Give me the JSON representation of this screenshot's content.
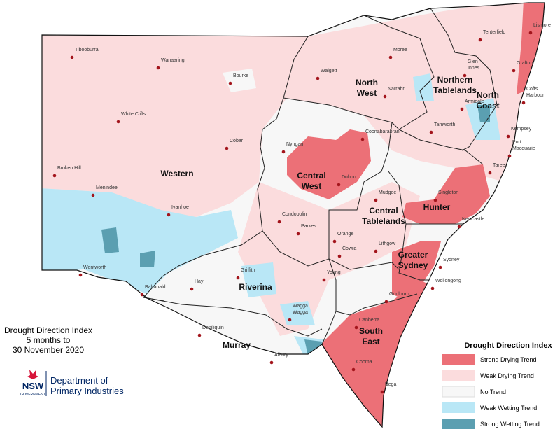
{
  "title": [
    "Drought Direction Index",
    "5 months to",
    "30 November 2020"
  ],
  "logo": {
    "mark": "NSW",
    "sub": "GOVERNMENT",
    "name": [
      "Department of",
      "Primary Industries"
    ]
  },
  "regions": [
    [
      "Western"
    ],
    [
      "North",
      "West"
    ],
    [
      "Northern",
      "Tablelands"
    ],
    [
      "North",
      "Coast"
    ],
    [
      "Central",
      "West"
    ],
    [
      "Central",
      "Tablelands"
    ],
    [
      "Hunter"
    ],
    [
      "Greater",
      "Sydney"
    ],
    [
      "Riverina"
    ],
    [
      "Murray"
    ],
    [
      "South",
      "East"
    ]
  ],
  "towns": [
    [
      "Tibooburra"
    ],
    [
      "Wanaaring"
    ],
    [
      "Bourke"
    ],
    [
      "Moree"
    ],
    [
      "Walgett"
    ],
    [
      "Tenterfield"
    ],
    [
      "Lismore"
    ],
    [
      "Glen",
      "Innes"
    ],
    [
      "Narrabri"
    ],
    [
      "Grafton"
    ],
    [
      "Coffs",
      "Harbour"
    ],
    [
      "Armidale"
    ],
    [
      "White Cliffs"
    ],
    [
      "Cobar"
    ],
    [
      "Nyngan"
    ],
    [
      "Coonabarabran"
    ],
    [
      "Tamworth"
    ],
    [
      "Kempsey"
    ],
    [
      "Port",
      "Macquarie"
    ],
    [
      "Broken Hill"
    ],
    [
      "Menindee"
    ],
    [
      "Dubbo"
    ],
    [
      "Taree"
    ],
    [
      "Mudgee"
    ],
    [
      "Singleton"
    ],
    [
      "Ivanhoe"
    ],
    [
      "Condobolin"
    ],
    [
      "Parkes"
    ],
    [
      "Newcastle"
    ],
    [
      "Orange"
    ],
    [
      "Lithgow"
    ],
    [
      "Cowra"
    ],
    [
      "Sydney"
    ],
    [
      "Wentworth"
    ],
    [
      "Griffith"
    ],
    [
      "Hay"
    ],
    [
      "Young"
    ],
    [
      "Balranald"
    ],
    [
      "Wollongong"
    ],
    [
      "Goulburn"
    ],
    [
      "Wagga",
      "Wagga"
    ],
    [
      "Canberra"
    ],
    [
      "Deniliquin"
    ],
    [
      "Albury"
    ],
    [
      "Cooma"
    ],
    [
      "Bega"
    ]
  ],
  "legend": {
    "title": "Drought Direction Index",
    "items": [
      {
        "label": "Strong Drying Trend",
        "color": "#ec7077"
      },
      {
        "label": "Weak Drying Trend",
        "color": "#fbdcdd"
      },
      {
        "label": "No Trend",
        "color": "#f7f7f7"
      },
      {
        "label": "Weak Wetting Trend",
        "color": "#b9e7f6"
      },
      {
        "label": "Strong Wetting Trend",
        "color": "#5b9fb1"
      }
    ]
  }
}
